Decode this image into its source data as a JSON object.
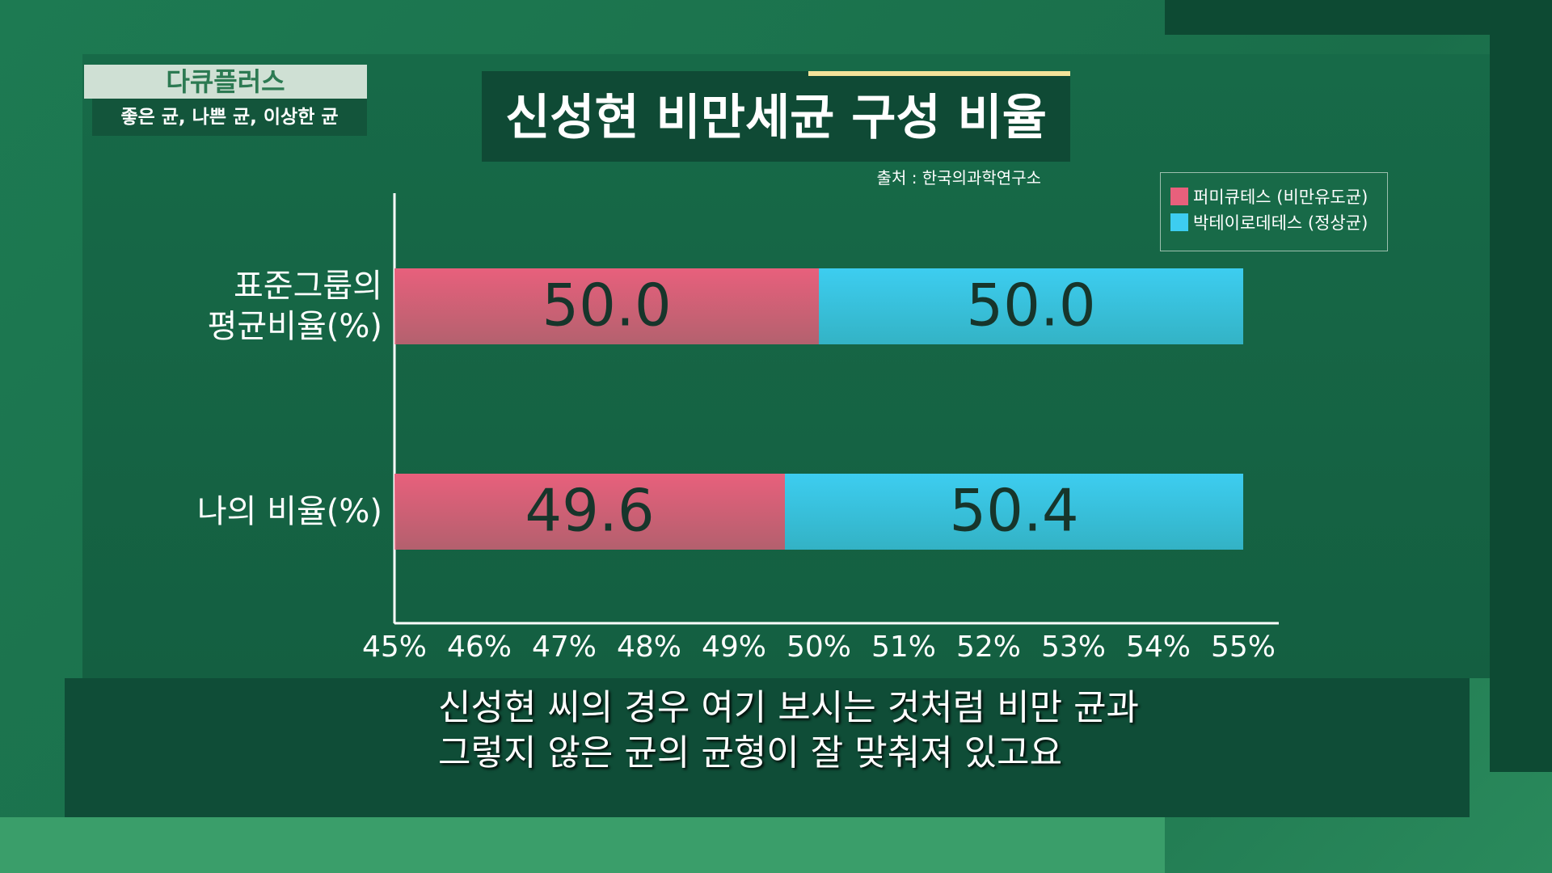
{
  "overlay": {
    "program": "다큐플러스",
    "episode": "좋은 균, 나쁜 균, 이상한 균"
  },
  "caption": {
    "lines": [
      "신성현 씨의 경우 여기 보시는 것처럼 비만 균과",
      "그렇지 않은 균의 균형이 잘 맞춰져 있고요"
    ]
  },
  "chart_data": {
    "type": "bar",
    "orientation": "horizontal",
    "title": "신성현 비만세균 구성 비율",
    "source": "출처 : 한국의과학연구소",
    "categories": [
      "표준그룹의\n평균비율(%)",
      "나의 비율(%)"
    ],
    "series": [
      {
        "name": "퍼미큐테스 (비만유도균)",
        "color": "#e8607c",
        "values": [
          50,
          49.6
        ],
        "value_labels": [
          "50.0",
          "49.6"
        ]
      },
      {
        "name": "박테이로데테스 (정상균)",
        "color": "#3dcdf0",
        "values": [
          50,
          50.4
        ],
        "value_labels": [
          "50.0",
          "50.4"
        ]
      }
    ],
    "xlim": [
      45,
      55
    ],
    "xticks": [
      {
        "value": 45,
        "label": "45%"
      },
      {
        "value": 46,
        "label": "46%"
      },
      {
        "value": 47,
        "label": "47%"
      },
      {
        "value": 48,
        "label": "48%"
      },
      {
        "value": 49,
        "label": "49%"
      },
      {
        "value": 50,
        "label": "50%"
      },
      {
        "value": 51,
        "label": "51%"
      },
      {
        "value": 52,
        "label": "52%"
      },
      {
        "value": 53,
        "label": "53%"
      },
      {
        "value": 54,
        "label": "54%"
      },
      {
        "value": 55,
        "label": "55%"
      }
    ],
    "legend": "top-right",
    "grid": false
  }
}
